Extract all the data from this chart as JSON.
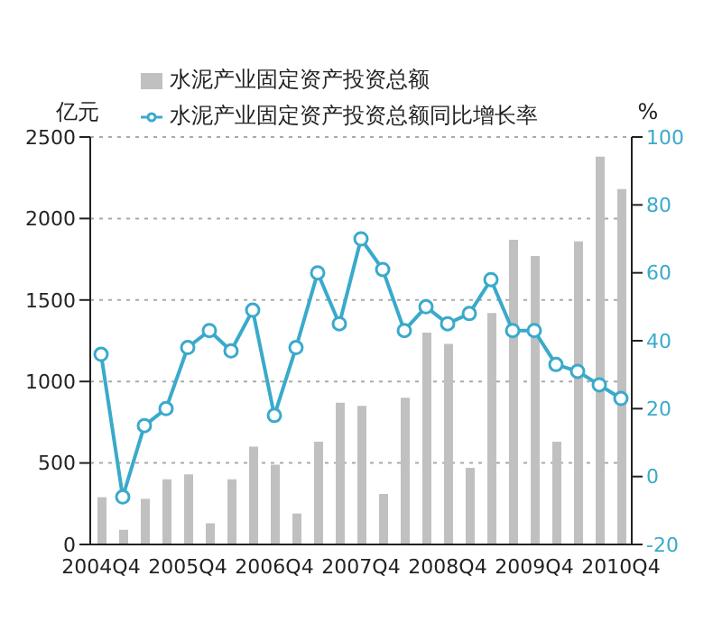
{
  "chart_data": {
    "type": "bar",
    "ylabel": "亿元",
    "y2label": "%",
    "categories": [
      "2004Q4",
      null,
      null,
      null,
      "2005Q4",
      null,
      null,
      null,
      "2006Q4",
      null,
      null,
      null,
      "2007Q4",
      null,
      null,
      null,
      "2008Q4",
      null,
      null,
      null,
      "2009Q4",
      null,
      null,
      null,
      "2010Q4"
    ],
    "series": [
      {
        "name": "水泥产业固定资产投资总额",
        "color": "#c0c0c0",
        "values": [
          290,
          90,
          280,
          400,
          430,
          130,
          400,
          600,
          490,
          190,
          630,
          870,
          850,
          310,
          900,
          1300,
          1230,
          470,
          1420,
          1870,
          1770,
          630,
          1860,
          2380,
          2180
        ]
      },
      {
        "name": "水泥产业固定资产投资总额同比增长率",
        "type": "line",
        "axis": "y2",
        "color": "#3aaacb",
        "values": [
          36,
          -6,
          15,
          20,
          38,
          43,
          37,
          49,
          18,
          38,
          60,
          45,
          70,
          61,
          43,
          50,
          45,
          48,
          58,
          43,
          43,
          33,
          31,
          27,
          23
        ]
      }
    ],
    "ylim": [
      0,
      2500
    ],
    "yticks": [
      0,
      500,
      1000,
      1500,
      2000,
      2500
    ],
    "y2lim": [
      -20,
      100
    ],
    "y2ticks": [
      -20,
      0,
      20,
      40,
      60,
      80,
      100
    ],
    "grid": "y",
    "legend": "top",
    "marker": "circle",
    "line_style": "solid"
  }
}
